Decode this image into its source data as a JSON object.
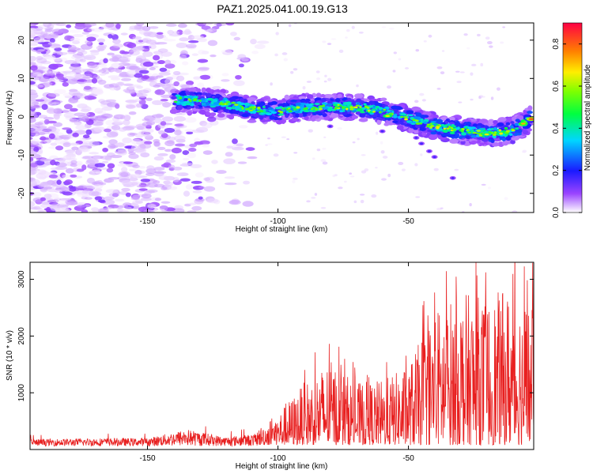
{
  "title": "PAZ1.2025.041.00.19.G13",
  "chart_data": [
    {
      "type": "heatmap",
      "name": "spectrogram",
      "xlabel": "Height of straight line (km)",
      "ylabel": "Frequency (Hz)",
      "xlim": [
        -195,
        -2
      ],
      "ylim": [
        -25,
        24.5
      ],
      "xticks": [
        -150,
        -100,
        -50
      ],
      "xtick_labels": [
        "-150",
        "-100",
        "-50"
      ],
      "yticks": [
        20,
        10,
        0,
        -10,
        -20
      ],
      "ytick_labels": [
        "20",
        "10",
        "0",
        "-10",
        "-20"
      ],
      "ridge": {
        "description": "dominant frequency of the signal vs height",
        "x": [
          -140,
          -130,
          -120,
          -110,
          -100,
          -90,
          -80,
          -70,
          -60,
          -50,
          -40,
          -30,
          -20,
          -10,
          -2
        ],
        "y": [
          4.5,
          4,
          3.5,
          2,
          1.5,
          2.5,
          2.5,
          2.5,
          1.5,
          -0.5,
          -2.5,
          -3.5,
          -4.5,
          -3.5,
          0
        ]
      },
      "colorbar": {
        "label": "Normalized spectral amplitude",
        "range": [
          0,
          0.9
        ],
        "ticks": [
          0,
          0.2,
          0.4,
          0.6,
          0.8
        ],
        "tick_labels": [
          "0.0",
          "0.2",
          "0.4",
          "0.6",
          "0.8"
        ]
      }
    },
    {
      "type": "line",
      "name": "snr",
      "xlabel": "Height of straight line (km)",
      "ylabel": "SNR (10 * v/v)",
      "xlim": [
        -195,
        -2
      ],
      "ylim": [
        0,
        3300
      ],
      "xticks": [
        -150,
        -100,
        -50
      ],
      "xtick_labels": [
        "-150",
        "-100",
        "-50"
      ],
      "yticks": [
        1000,
        2000,
        3000
      ],
      "ytick_labels": [
        "1000",
        "2000",
        "3000"
      ],
      "color": "#e82020",
      "envelope": {
        "x": [
          -195,
          -170,
          -150,
          -135,
          -120,
          -108,
          -100,
          -90,
          -80,
          -70,
          -60,
          -50,
          -40,
          -30,
          -20,
          -10,
          -2
        ],
        "y": [
          180,
          200,
          200,
          360,
          220,
          280,
          550,
          1100,
          1500,
          1100,
          1150,
          1400,
          2400,
          2700,
          2600,
          2800,
          2500
        ]
      }
    }
  ]
}
